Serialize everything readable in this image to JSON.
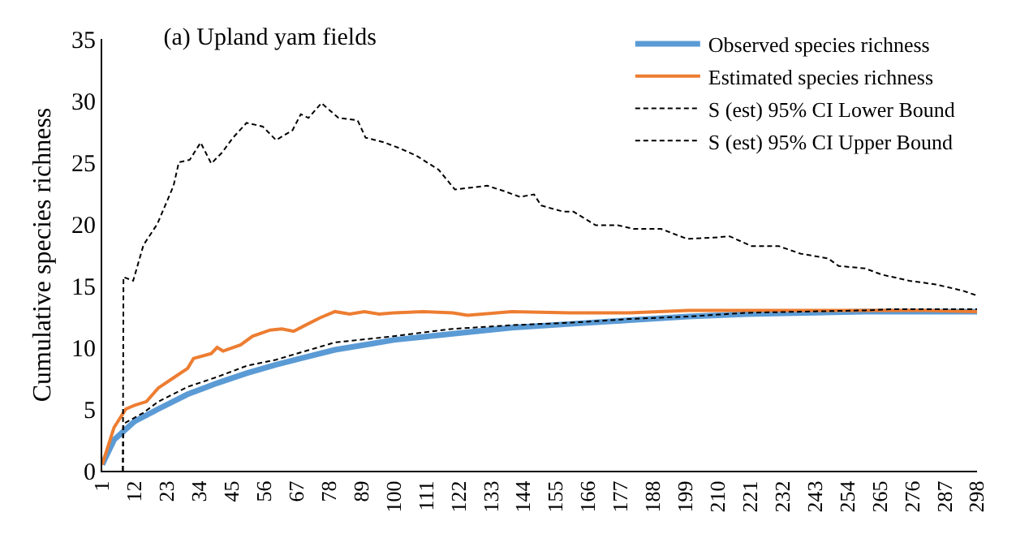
{
  "chart_data": {
    "type": "line",
    "title": "(a) Upland yam fields",
    "ylabel": "Cumulative species richness",
    "xlim": [
      1,
      298
    ],
    "xticks": [
      1,
      12,
      23,
      34,
      45,
      56,
      67,
      78,
      89,
      100,
      111,
      122,
      133,
      144,
      155,
      166,
      177,
      188,
      199,
      210,
      221,
      232,
      243,
      254,
      265,
      276,
      287,
      298
    ],
    "ylim": [
      0,
      35
    ],
    "yticks": [
      0,
      5,
      10,
      15,
      20,
      25,
      30,
      35
    ],
    "legend": "top right",
    "series": [
      {
        "name": "Observed species richness",
        "color": "#5b9bd5",
        "line_style": "solid",
        "x": [
          1,
          5,
          12,
          20,
          30,
          40,
          50,
          60,
          70,
          80,
          90,
          100,
          120,
          140,
          160,
          180,
          200,
          220,
          240,
          260,
          280,
          298
        ],
        "values": [
          0.5,
          2.5,
          4,
          5,
          6.2,
          7.1,
          7.9,
          8.6,
          9.2,
          9.8,
          10.2,
          10.6,
          11.1,
          11.6,
          11.9,
          12.2,
          12.5,
          12.7,
          12.8,
          12.9,
          12.9,
          12.9
        ]
      },
      {
        "name": "Estimated species richness",
        "color": "#ed7d31",
        "line_style": "solid",
        "x": [
          1,
          5,
          9,
          12,
          16,
          20,
          25,
          30,
          32,
          38,
          40,
          42,
          48,
          52,
          58,
          62,
          66,
          70,
          75,
          80,
          85,
          90,
          95,
          100,
          110,
          120,
          125,
          140,
          160,
          180,
          200,
          220,
          240,
          260,
          280,
          298
        ],
        "values": [
          0.5,
          3.5,
          5,
          5.3,
          5.6,
          6.7,
          7.5,
          8.3,
          9.1,
          9.5,
          10,
          9.7,
          10.2,
          10.9,
          11.4,
          11.5,
          11.3,
          11.8,
          12.4,
          12.9,
          12.7,
          12.9,
          12.7,
          12.8,
          12.9,
          12.8,
          12.6,
          12.9,
          12.8,
          12.8,
          13,
          13,
          13,
          13,
          13,
          12.9
        ]
      },
      {
        "name": "S (est) 95% CI Lower Bound",
        "color": "#000000",
        "line_style": "dashed",
        "x": [
          8,
          8.2,
          15,
          20,
          30,
          40,
          50,
          60,
          70,
          80,
          100,
          120,
          140,
          160,
          180,
          200,
          220,
          240,
          260,
          270,
          298
        ],
        "values": [
          0,
          3.8,
          4.7,
          5.6,
          6.8,
          7.6,
          8.5,
          9,
          9.7,
          10.4,
          10.9,
          11.5,
          11.8,
          12,
          12.3,
          12.5,
          12.8,
          12.9,
          13,
          13.1,
          13.1
        ]
      },
      {
        "name": "S (est) 95% CI Upper Bound",
        "color": "#000000",
        "line_style": "dashed",
        "x": [
          8,
          8.2,
          11.5,
          15,
          19.7,
          25.2,
          27,
          30.7,
          34.4,
          38,
          41.7,
          45.4,
          50,
          55.5,
          60,
          65.6,
          68.4,
          71,
          75.4,
          81.2,
          87.7,
          90.4,
          96.9,
          102.4,
          107.9,
          115.2,
          120.7,
          131.7,
          137,
          142.8,
          147.6,
          150,
          157.5,
          161,
          168.5,
          176,
          181.5,
          190.7,
          199.5,
          208.7,
          214,
          221.5,
          230.7,
          238,
          247.5,
          251,
          260,
          265.6,
          275,
          284,
          293,
          298
        ],
        "values": [
          0,
          15.7,
          15.4,
          18.3,
          20,
          23.1,
          25,
          25.2,
          26.6,
          24.9,
          25.8,
          27,
          28.2,
          27.9,
          26.8,
          27.6,
          28.9,
          28.6,
          29.8,
          28.6,
          28.4,
          27,
          26.6,
          26.1,
          25.5,
          24.4,
          22.8,
          23.1,
          22.7,
          22.2,
          22.4,
          21.5,
          21,
          21,
          19.9,
          19.9,
          19.6,
          19.6,
          18.8,
          18.9,
          19,
          18.2,
          18.2,
          17.6,
          17.2,
          16.6,
          16.4,
          15.9,
          15.4,
          15.1,
          14.6,
          14.2
        ]
      }
    ]
  }
}
